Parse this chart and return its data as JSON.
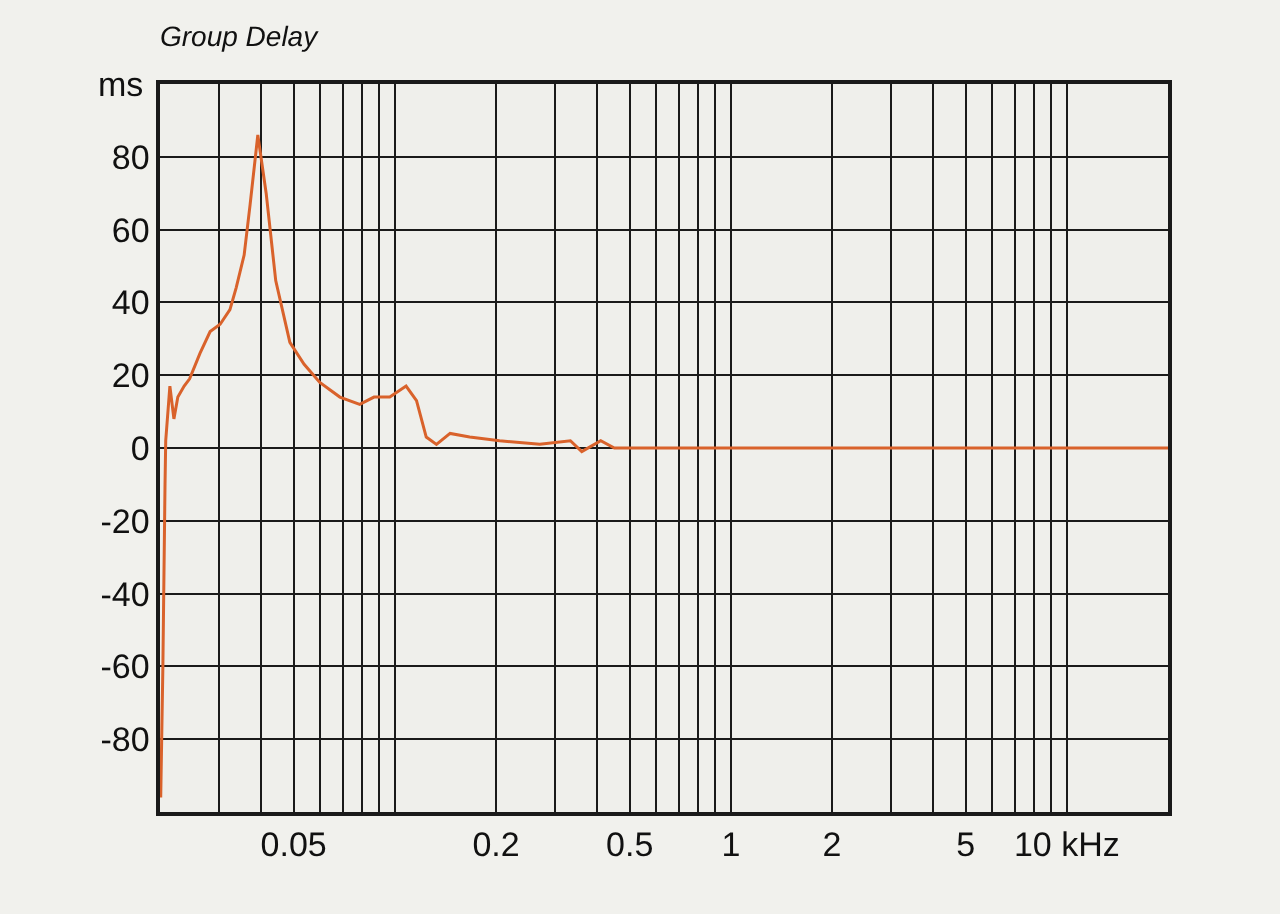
{
  "chart_data": {
    "type": "line",
    "title": "Group Delay",
    "ylabel": "ms",
    "x": [
      0.0201,
      0.0204,
      0.0207,
      0.0208,
      0.0214,
      0.022,
      0.0226,
      0.0236,
      0.0245,
      0.0263,
      0.0282,
      0.0302,
      0.0323,
      0.0337,
      0.0356,
      0.0371,
      0.0391,
      0.0414,
      0.0442,
      0.0487,
      0.0537,
      0.0598,
      0.0686,
      0.0786,
      0.0867,
      0.0966,
      0.108,
      0.116,
      0.124,
      0.133,
      0.146,
      0.167,
      0.205,
      0.27,
      0.333,
      0.36,
      0.41,
      0.45,
      0.54,
      1,
      5,
      20
    ],
    "series": [
      {
        "color": "#d9622b",
        "values": [
          -96,
          -60,
          -10,
          2,
          17,
          8,
          14,
          17,
          19,
          26,
          32,
          34,
          38,
          44,
          53,
          67,
          86,
          70,
          46,
          29,
          23,
          18,
          14,
          12,
          14,
          14,
          17,
          13,
          3,
          1,
          4,
          3,
          2,
          1,
          2,
          -1,
          2,
          0,
          0,
          0,
          0,
          0
        ]
      }
    ],
    "log": "x",
    "xlim": [
      0.02,
      20
    ],
    "ylim": [
      -100,
      100
    ],
    "xticks": [
      {
        "value": 0.03,
        "label": null
      },
      {
        "value": 0.04,
        "label": null
      },
      0.05,
      {
        "value": 0.06,
        "label": null
      },
      {
        "value": 0.07,
        "label": null
      },
      {
        "value": 0.08,
        "label": null
      },
      {
        "value": 0.09,
        "label": null
      },
      {
        "value": 0.1,
        "label": null
      },
      0.2,
      {
        "value": 0.3,
        "label": null
      },
      {
        "value": 0.4,
        "label": null
      },
      0.5,
      {
        "value": 0.6,
        "label": null
      },
      {
        "value": 0.7,
        "label": null
      },
      {
        "value": 0.8,
        "label": null
      },
      {
        "value": 0.9,
        "label": null
      },
      1,
      2,
      {
        "value": 3,
        "label": null
      },
      {
        "value": 4,
        "label": null
      },
      5,
      {
        "value": 6,
        "label": null
      },
      {
        "value": 7,
        "label": null
      },
      {
        "value": 8,
        "label": null
      },
      {
        "value": 9,
        "label": null
      },
      {
        "value": 10,
        "label": "10 kHz"
      }
    ],
    "yticks": [
      -80,
      -60,
      -40,
      -20,
      0,
      20,
      40,
      60,
      80
    ],
    "grid": true,
    "marker": "none",
    "line_style": "solid"
  }
}
